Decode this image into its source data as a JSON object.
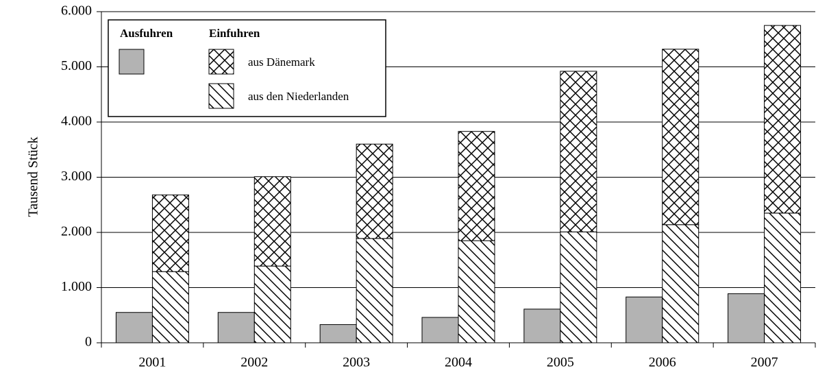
{
  "chart_data": {
    "type": "bar",
    "y_label": "Tausend Stück",
    "categories": [
      "2001",
      "2002",
      "2003",
      "2004",
      "2005",
      "2006",
      "2007"
    ],
    "legend_group": "Einfuhren",
    "series": [
      {
        "name": "Ausfuhren",
        "color": "#b3b3b3",
        "stack": "a",
        "values": [
          550,
          550,
          330,
          460,
          610,
          830,
          890
        ]
      },
      {
        "name": "aus den Niederlanden",
        "color": "#000000",
        "pattern": "diagonal",
        "stack": "e",
        "values": [
          1290,
          1390,
          1890,
          1850,
          2010,
          2140,
          2350
        ]
      },
      {
        "name": "aus Dänemark",
        "color": "#000000",
        "pattern": "crosshatch",
        "stack": "e",
        "values": [
          1390,
          1620,
          1710,
          1980,
          2910,
          3180,
          3400
        ]
      }
    ],
    "ylim": [
      0,
      6000
    ],
    "yticks": [
      0,
      {
        "value": 1000,
        "label": "1.000"
      },
      {
        "value": 2000,
        "label": "2.000"
      },
      {
        "value": 3000,
        "label": "3.000"
      },
      {
        "value": 4000,
        "label": "4.000"
      },
      {
        "value": 5000,
        "label": "5.000"
      },
      {
        "value": 6000,
        "label": "6.000"
      }
    ],
    "grid": true
  }
}
